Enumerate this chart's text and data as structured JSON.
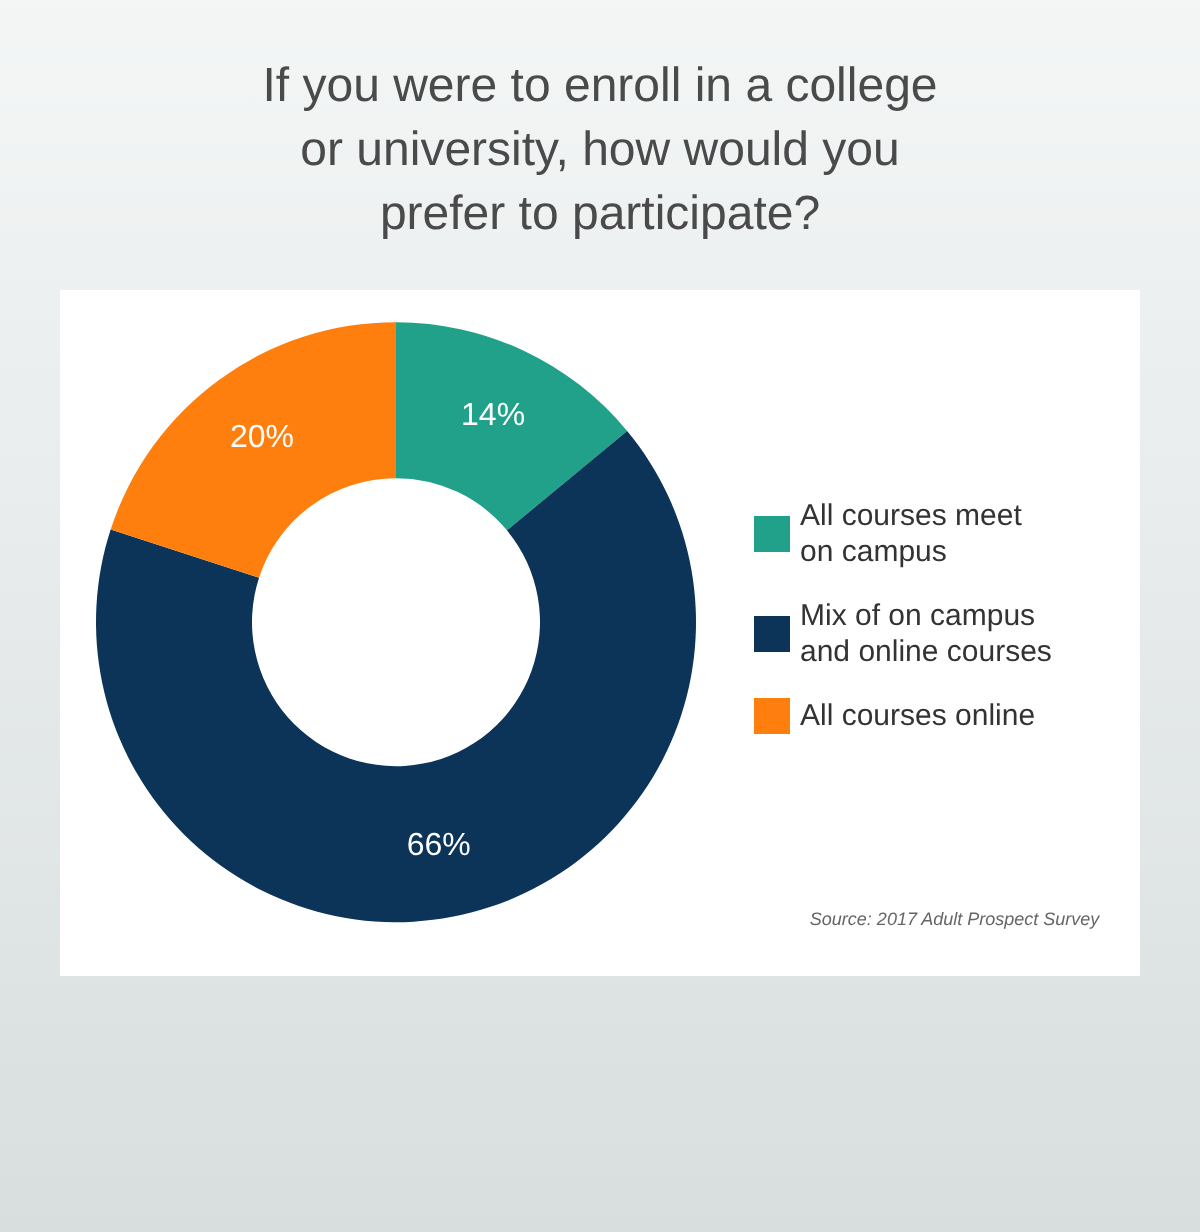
{
  "chart_data": {
    "type": "donut",
    "title": "If you were to enroll in a college\nor university, how would you\nprefer to participate?",
    "categories": [
      "All courses meet on campus",
      "Mix of on campus and online courses",
      "All courses online"
    ],
    "values": [
      14,
      66,
      20
    ],
    "colors": [
      "#21a08a",
      "#0b3458",
      "#ff7f0e"
    ],
    "value_labels": [
      "14%",
      "66%",
      "20%"
    ],
    "legend": "right",
    "annotations": [
      "Source: 2017 Adult Prospect Survey"
    ]
  }
}
